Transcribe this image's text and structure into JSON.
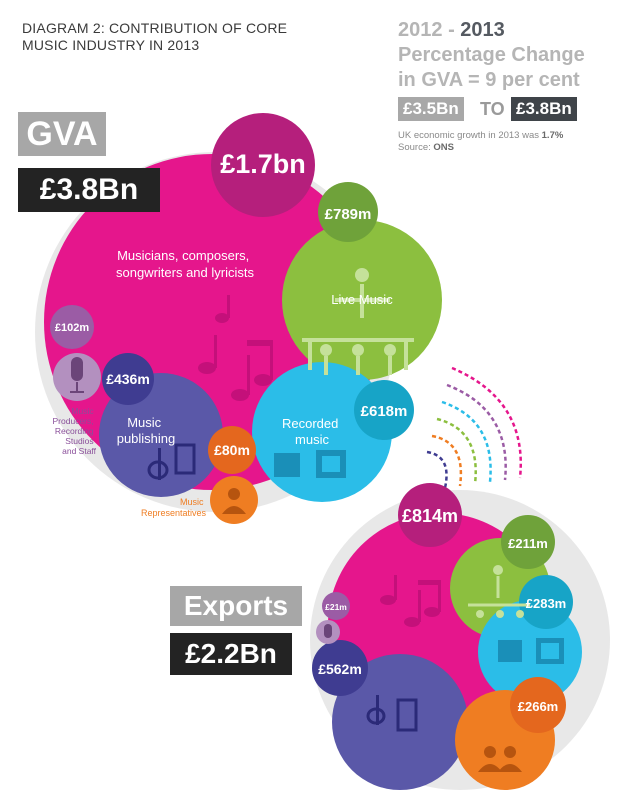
{
  "title": "DIAGRAM 2: CONTRIBUTION OF CORE MUSIC INDUSTRY IN 2013",
  "change": {
    "year_from": "2012",
    "dash": "-",
    "year_to": "2013",
    "line2": "Percentage Change",
    "line3": "in GVA = 9 per cent",
    "from_value": "£3.5Bn",
    "to_word": "TO",
    "to_value": "£3.8Bn",
    "note_prefix": "UK economic growth in 2013 was",
    "note_value": "1.7%",
    "source_prefix": "Source:",
    "source_value": "ONS"
  },
  "gva": {
    "label": "GVA",
    "total": "£3.8Bn",
    "segments": [
      {
        "name": "Musicians, composers, songwriters and lyricists",
        "value": "£1.7bn",
        "color": "#e5168c"
      },
      {
        "name": "Live Music",
        "value": "£789m",
        "color": "#8cbf3f"
      },
      {
        "name": "Recorded music",
        "value": "£618m",
        "color": "#2bbde8"
      },
      {
        "name": "Music publishing",
        "value": "£436m",
        "color": "#5a58a8"
      },
      {
        "name": "Music Representatives",
        "value": "£80m",
        "color": "#ef7d22"
      },
      {
        "name": "Music Producers, Recording Studios and Staff",
        "value": "£102m",
        "color": "#9b5ca5"
      }
    ],
    "label_lines": {
      "musicians": [
        "Musicians, composers,",
        "songwriters and lyricists"
      ],
      "live": [
        "Live Music"
      ],
      "recorded": [
        "Recorded",
        "music"
      ],
      "publishing": [
        "Music",
        "publishing"
      ],
      "reps": [
        "Music",
        "Representatives"
      ],
      "producers": [
        "Music",
        "Producers,",
        "Recording",
        "Studios",
        "and Staff"
      ]
    }
  },
  "exports": {
    "label": "Exports",
    "total": "£2.2Bn",
    "values": {
      "musicians": "£814m",
      "live": "£211m",
      "recorded": "£283m",
      "publishing": "£562m",
      "reps": "£266m",
      "producers": "£21m"
    }
  },
  "colors": {
    "magenta": "#e5168c",
    "dark_magenta": "#b51f7c",
    "green": "#8cbf3f",
    "dark_green": "#6fa23a",
    "blue": "#2bbde8",
    "dark_blue": "#17a4c7",
    "purple": "#5a58a8",
    "dark_purple": "#3f3c91",
    "orange": "#ef7d22",
    "dark_orange": "#e4671e",
    "violet": "#9b5ca5",
    "dark_violet": "#7e4591",
    "halo": "#e8e8e8"
  }
}
